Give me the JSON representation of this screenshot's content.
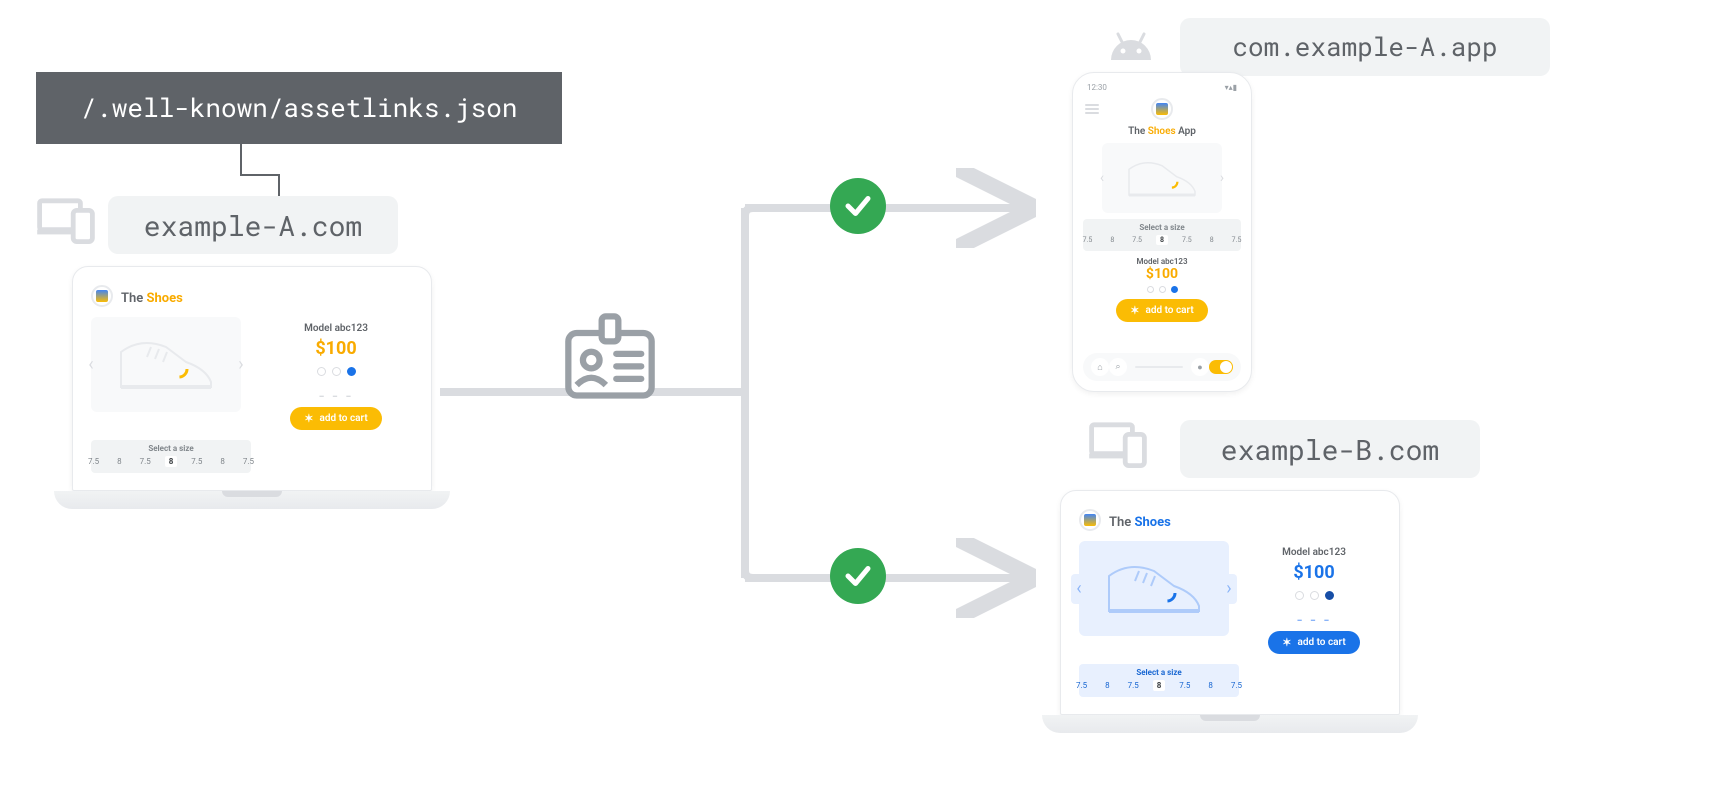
{
  "colors": {
    "darkbox": "#5f6368",
    "pill_bg": "#f1f3f4",
    "pill_text": "#5f6368",
    "line": "#dadce0",
    "check": "#34a853",
    "yellow": "#f9ab00",
    "blue": "#1a73e8",
    "blue_dark": "#174ea6"
  },
  "asset_path": "/.well-known/assetlinks.json",
  "source_domain": "example-A.com",
  "target_app": "com.example-A.app",
  "target_domain": "example-B.com",
  "product": {
    "brand_pre": "The ",
    "brand_name": "Shoes",
    "app_suffix": " App",
    "model": "Model abc123",
    "price": "$100",
    "cta": "add to cart",
    "size_label": "Select a size",
    "sizes": [
      "7.5",
      "8",
      "7.5",
      "8",
      "7.5",
      "8",
      "7.5"
    ],
    "selected_size_index": 3
  },
  "phone_status": {
    "time": "12:30",
    "icons": "▾▴▮"
  }
}
